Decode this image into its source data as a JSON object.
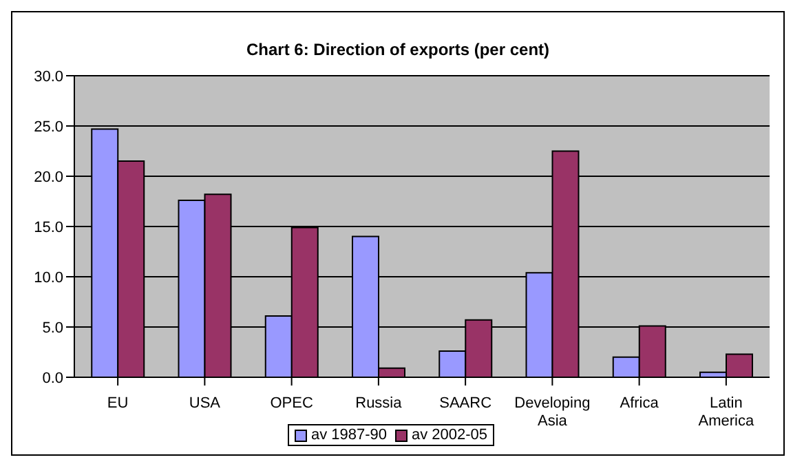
{
  "chart_data": {
    "type": "bar",
    "title": "Chart 6: Direction of exports (per cent)",
    "categories": [
      "EU",
      "USA",
      "OPEC",
      "Russia",
      "SAARC",
      "Developing Asia",
      "Africa",
      "Latin America"
    ],
    "series": [
      {
        "name": "av 1987-90",
        "color": "#9999ff",
        "values": [
          24.7,
          17.6,
          6.1,
          14.0,
          2.6,
          10.4,
          2.0,
          0.5
        ]
      },
      {
        "name": "av 2002-05",
        "color": "#993366",
        "values": [
          21.5,
          18.2,
          14.9,
          0.9,
          5.7,
          22.5,
          5.1,
          2.3
        ]
      }
    ],
    "ylim": [
      0,
      30
    ],
    "yticks": [
      {
        "value": 0,
        "label": "0.0"
      },
      {
        "value": 5,
        "label": "5.0"
      },
      {
        "value": 10,
        "label": "10.0"
      },
      {
        "value": 15,
        "label": "15.0"
      },
      {
        "value": 20,
        "label": "20.0"
      },
      {
        "value": 25,
        "label": "25.0"
      },
      {
        "value": 30,
        "label": "30.0"
      }
    ],
    "grid": "y",
    "legend": "bottom"
  }
}
